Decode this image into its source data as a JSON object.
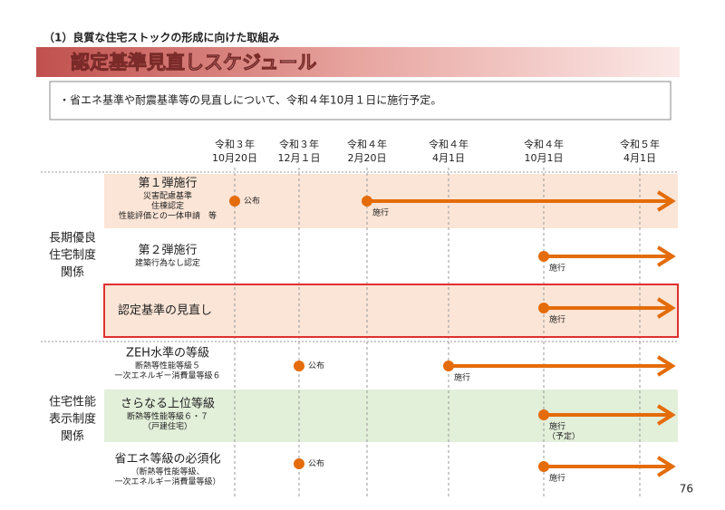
{
  "header": {
    "section": "（1）良質な住宅ストックの形成に向けた取組み",
    "title": "認定基準見直しスケジュール"
  },
  "note": "・省エネ基準や耐震基準等の見直しについて、令和４年10月１日に施行予定。",
  "timeline": [
    {
      "era": "令和３年",
      "date": "10月20日"
    },
    {
      "era": "令和３年",
      "date": "12月１日"
    },
    {
      "era": "令和４年",
      "date": "2月20日"
    },
    {
      "era": "令和４年",
      "date": "4月1日"
    },
    {
      "era": "令和４年",
      "date": "10月1日"
    },
    {
      "era": "令和５年",
      "date": "4月1日"
    }
  ],
  "groups": [
    {
      "label": [
        "長期優良",
        "住宅制度",
        "関係"
      ],
      "rows": [
        {
          "title": "第１弾施行",
          "details": [
            "災害配慮基準",
            "住棟認定",
            "性能評価との一体申請　等"
          ],
          "events": [
            {
              "label": "公布"
            },
            {
              "label": "施行"
            }
          ]
        },
        {
          "title": "第２弾施行",
          "details": [
            "建築行為なし認定"
          ],
          "events": [
            {
              "label": "施行"
            }
          ]
        },
        {
          "title": "認定基準の見直し",
          "details": [],
          "events": [
            {
              "label": "施行"
            }
          ]
        }
      ]
    },
    {
      "label": [
        "住宅性能",
        "表示制度",
        "関係"
      ],
      "rows": [
        {
          "title": "ZEH水準の等級",
          "details": [
            "断熱等性能等級５",
            "一次エネルギー消費量等級６"
          ],
          "events": [
            {
              "label": "公布"
            },
            {
              "label": "施行"
            }
          ]
        },
        {
          "title": "さらなる上位等級",
          "details": [
            "断熱等性能等級６・７",
            "（戸建住宅）"
          ],
          "events": [
            {
              "label": "施行",
              "note": "（予定）"
            }
          ]
        },
        {
          "title": "省エネ等級の必須化",
          "details": [
            "（断熱等性能等級、",
            "一次エネルギー消費量等級）"
          ],
          "events": [
            {
              "label": "公布"
            },
            {
              "label": "施行"
            }
          ]
        }
      ]
    }
  ],
  "page_number": "76"
}
